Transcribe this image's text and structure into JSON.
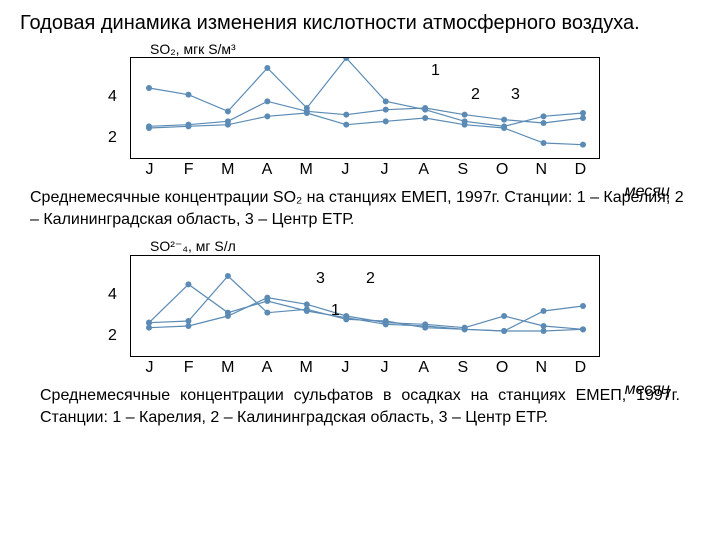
{
  "title": "Годовая динамика изменения кислотности атмосферного воздуха.",
  "monthLabel": "месяц",
  "months": [
    "J",
    "F",
    "M",
    "A",
    "M",
    "J",
    "J",
    "A",
    "S",
    "O",
    "N",
    "D"
  ],
  "chart1": {
    "axisTitle": "SO₂, мгк S/м³",
    "yTicks": [
      "4",
      "2"
    ],
    "yMax": 6,
    "seriesLabels": {
      "1": "1",
      "2": "2",
      "3": "3"
    },
    "colors": {
      "line": "#5b8bb5",
      "point": "#5b8bb5",
      "border": "#000000"
    },
    "series": {
      "s1": [
        4.2,
        3.8,
        2.8,
        5.4,
        3.0,
        6.0,
        3.4,
        2.9,
        2.2,
        1.9,
        2.5,
        2.7
      ],
      "s2": [
        1.9,
        2.0,
        2.2,
        3.4,
        2.8,
        2.6,
        2.9,
        3.0,
        2.6,
        2.3,
        2.1,
        2.4
      ],
      "s3": [
        1.8,
        1.9,
        2.0,
        2.5,
        2.7,
        2.0,
        2.2,
        2.4,
        2.0,
        1.8,
        0.9,
        0.8
      ]
    },
    "labelPos": {
      "1": [
        300,
        8
      ],
      "2": [
        340,
        32
      ],
      "3": [
        380,
        32
      ]
    }
  },
  "caption1": "Среднемесячные концентрации SO₂ на станциях ЕМЕП, 1997г. Станции: 1 – Карелия, 2 – Калининградская область, 3 – Центр ЕТР.",
  "chart2": {
    "axisTitle": "SO²⁻₄, мг S/л",
    "yTicks": [
      "4",
      "2"
    ],
    "yMax": 6,
    "seriesLabels": {
      "1": "1",
      "2": "2",
      "3": "3"
    },
    "colors": {
      "line": "#5b8bb5",
      "point": "#5b8bb5",
      "border": "#000000"
    },
    "series": {
      "s1": [
        2.0,
        2.1,
        4.8,
        2.6,
        2.8,
        2.2,
        2.1,
        1.7,
        1.6,
        1.5,
        1.5,
        1.6
      ],
      "s2": [
        2.0,
        4.3,
        2.6,
        3.3,
        2.7,
        2.3,
        1.9,
        1.8,
        1.6,
        1.5,
        2.7,
        3.0
      ],
      "s3": [
        1.7,
        1.8,
        2.4,
        3.5,
        3.1,
        2.4,
        2.0,
        1.9,
        1.7,
        2.4,
        1.8,
        1.6
      ]
    },
    "labelPos": {
      "1": [
        200,
        50
      ],
      "2": [
        235,
        18
      ],
      "3": [
        185,
        18
      ]
    }
  },
  "caption2": "Среднемесячные концентрации сульфатов в осадках на станциях ЕМЕП, 1997г. Станции: 1 – Карелия, 2 – Калининградская область, 3 – Центр ЕТР."
}
